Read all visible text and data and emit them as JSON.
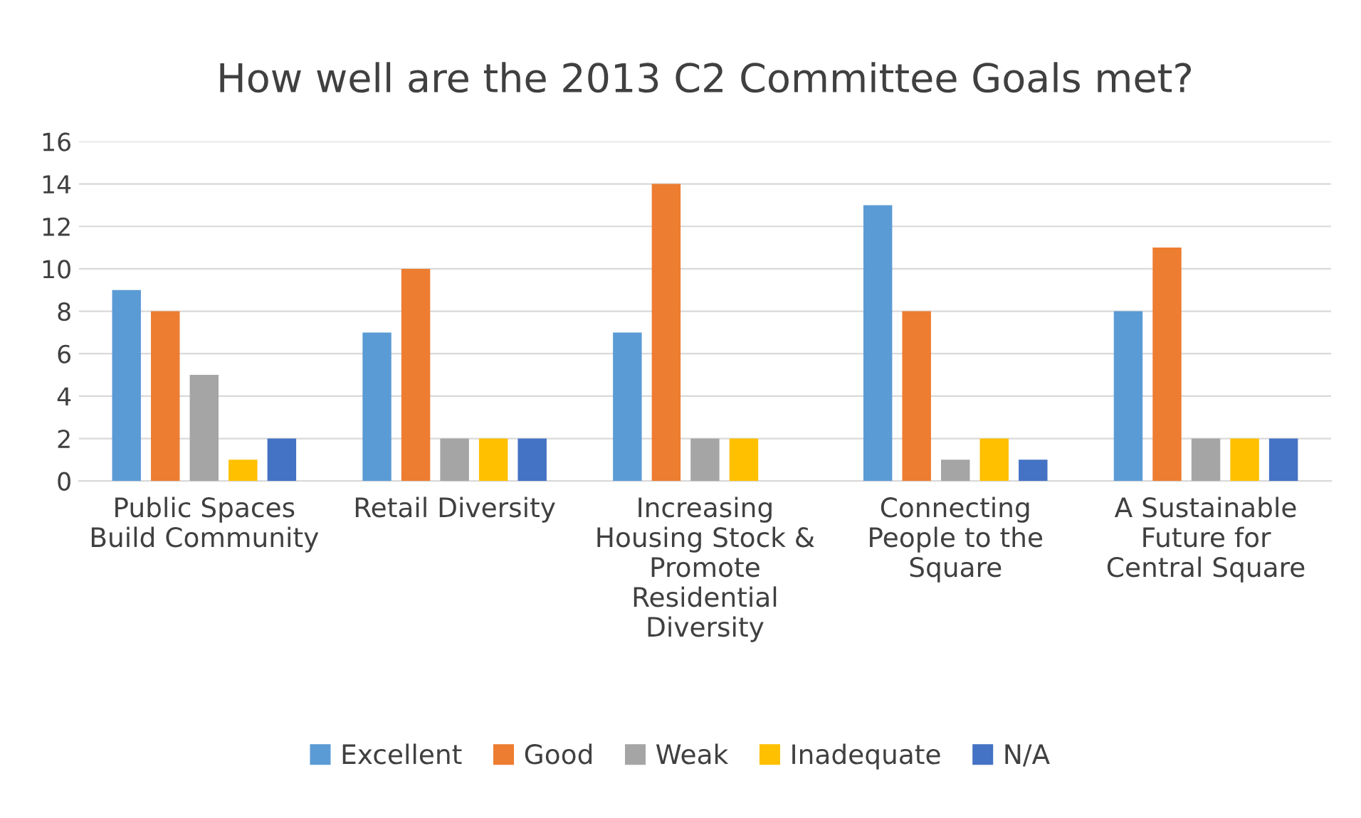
{
  "chart_data": {
    "type": "bar",
    "title": "How well are the 2013 C2 Committee Goals met?",
    "categories": [
      "Public Spaces\nBuild Community",
      "Retail Diversity",
      "Increasing\nHousing Stock &\nPromote\nResidential\nDiversity",
      "Connecting\nPeople to the\nSquare",
      "A Sustainable\nFuture for\nCentral Square"
    ],
    "series": [
      {
        "name": "Excellent",
        "color": "#5b9bd5",
        "values": [
          9,
          7,
          7,
          13,
          8
        ]
      },
      {
        "name": "Good",
        "color": "#ed7d31",
        "values": [
          8,
          10,
          14,
          8,
          11
        ]
      },
      {
        "name": "Weak",
        "color": "#a5a5a5",
        "values": [
          5,
          2,
          2,
          1,
          2
        ]
      },
      {
        "name": "Inadequate",
        "color": "#ffc000",
        "values": [
          1,
          2,
          2,
          2,
          2
        ]
      },
      {
        "name": "N/A",
        "color": "#4472c4",
        "values": [
          2,
          2,
          0,
          1,
          2
        ]
      }
    ],
    "ylim": [
      0,
      16
    ],
    "yticks": [
      0,
      2,
      4,
      6,
      8,
      10,
      12,
      14,
      16
    ],
    "grid": "y",
    "legend": "bottom"
  }
}
